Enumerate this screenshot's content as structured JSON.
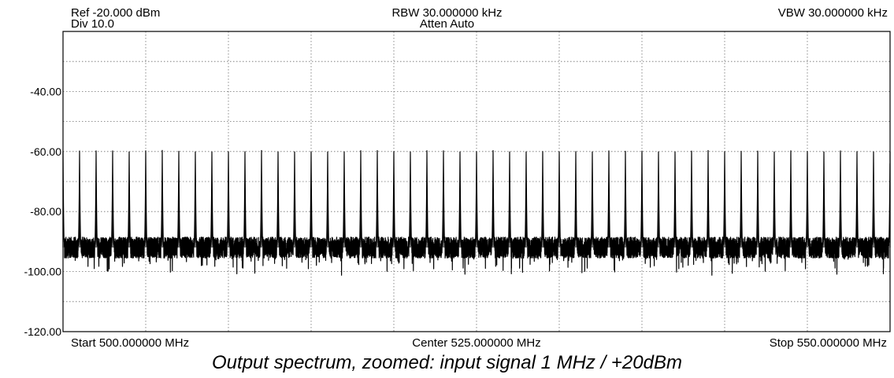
{
  "header": {
    "ref": "Ref -20.000 dBm",
    "div": "Div 10.0",
    "rbw": "RBW 30.000000 kHz",
    "atten": "Atten Auto",
    "vbw": "VBW 30.000000 kHz"
  },
  "footer": {
    "start": "Start 500.000000 MHz",
    "center": "Center 525.000000 MHz",
    "stop": "Stop 550.000000 MHz"
  },
  "caption": "Output spectrum, zoomed: input signal 1 MHz / +20dBm",
  "colors": {
    "trace": "#000000",
    "grid": "#6e6e6e",
    "background": "#ffffff"
  },
  "chart_data": {
    "type": "line",
    "xlim": [
      500,
      550
    ],
    "ylim": [
      -120,
      -20
    ],
    "grid": true,
    "y_ticks": [
      {
        "value": -40,
        "label": "-40.00"
      },
      {
        "value": -60,
        "label": "-60.00"
      },
      {
        "value": -80,
        "label": "-80.00"
      },
      {
        "value": -100,
        "label": "-100.00"
      },
      {
        "value": -120,
        "label": "-120.00"
      }
    ],
    "noise_floor_dbm": -92,
    "spur_peaks": {
      "spacing_mhz": 1,
      "first_mhz": 500,
      "last_mhz": 550,
      "peak_dbm": -60
    },
    "notable_dips": [
      {
        "x": 525,
        "y": -104
      },
      {
        "x": 530,
        "y": -102
      },
      {
        "x": 540,
        "y": -101
      }
    ]
  }
}
